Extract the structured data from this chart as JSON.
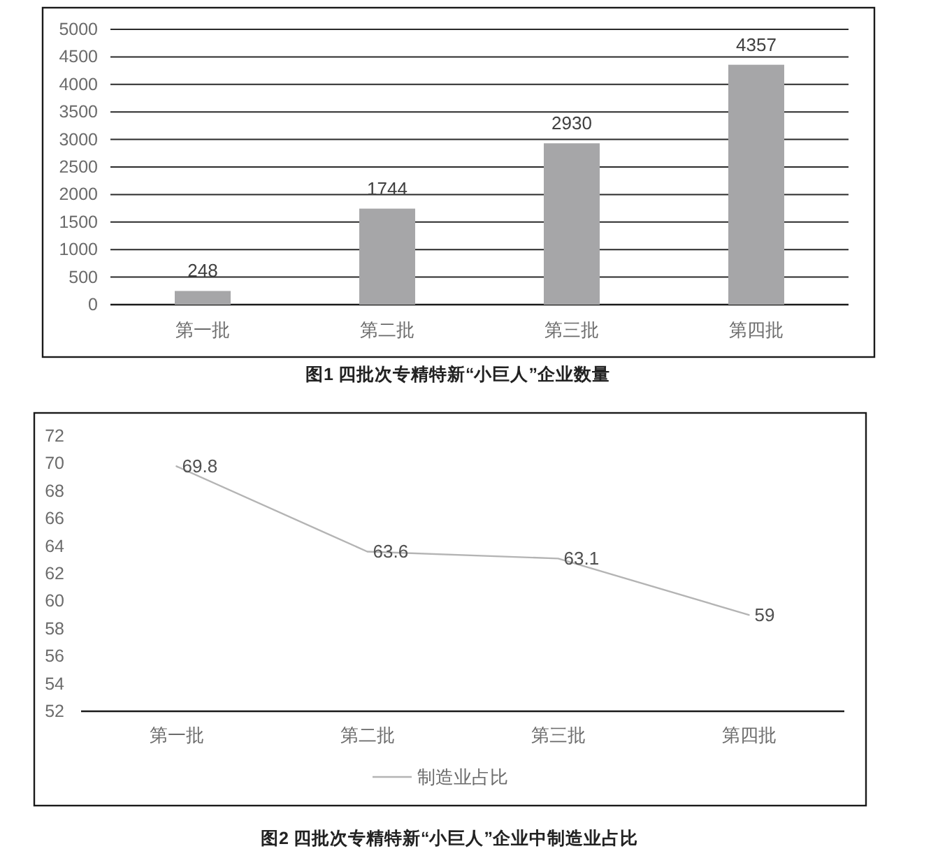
{
  "chart_data": [
    {
      "type": "bar",
      "title": "图1 四批次专精特新“小巨人”企业数量",
      "categories": [
        "第一批",
        "第二批",
        "第三批",
        "第四批"
      ],
      "values": [
        248,
        1744,
        2930,
        4357
      ],
      "color": "#a6a6a8",
      "ylim": [
        0,
        5000
      ],
      "yticks": [
        0,
        500,
        1000,
        1500,
        2000,
        2500,
        3000,
        3500,
        4000,
        4500,
        5000
      ],
      "grid": "y",
      "data_labels": true
    },
    {
      "type": "line",
      "title": "图2 四批次专精特新“小巨人”企业中制造业占比",
      "categories": [
        "第一批",
        "第二批",
        "第三批",
        "第四批"
      ],
      "series": [
        {
          "name": "制造业占比",
          "color": "#b4b4b4",
          "values": [
            69.8,
            63.6,
            63.1,
            59
          ]
        }
      ],
      "ylim": [
        52,
        72
      ],
      "yticks": [
        52,
        54,
        56,
        58,
        60,
        62,
        64,
        66,
        68,
        70,
        72
      ],
      "grid": false,
      "data_labels": true,
      "legend": "bottom"
    }
  ]
}
